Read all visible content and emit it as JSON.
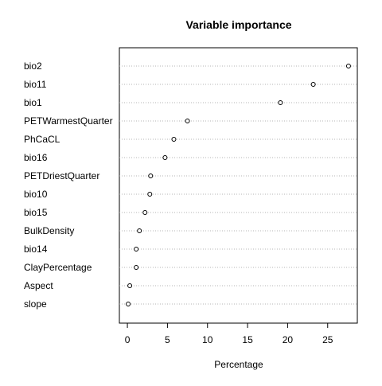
{
  "chart_data": {
    "type": "scatter",
    "title": "Variable importance",
    "xlabel": "Percentage",
    "ylabel": "",
    "xlim": [
      -1.0,
      28.7
    ],
    "xticks": [
      0,
      5,
      10,
      15,
      20,
      25
    ],
    "grid": "horizontal dotted",
    "categories": [
      "bio2",
      "bio11",
      "bio1",
      "PETWarmestQuarter",
      "PhCaCL",
      "bio16",
      "PETDriestQuarter",
      "bio10",
      "bio15",
      "BulkDensity",
      "bio14",
      "ClayPercentage",
      "Aspect",
      "slope"
    ],
    "values": [
      27.6,
      23.2,
      19.1,
      7.5,
      5.8,
      4.7,
      2.9,
      2.8,
      2.2,
      1.5,
      1.1,
      1.1,
      0.3,
      0.1
    ]
  }
}
